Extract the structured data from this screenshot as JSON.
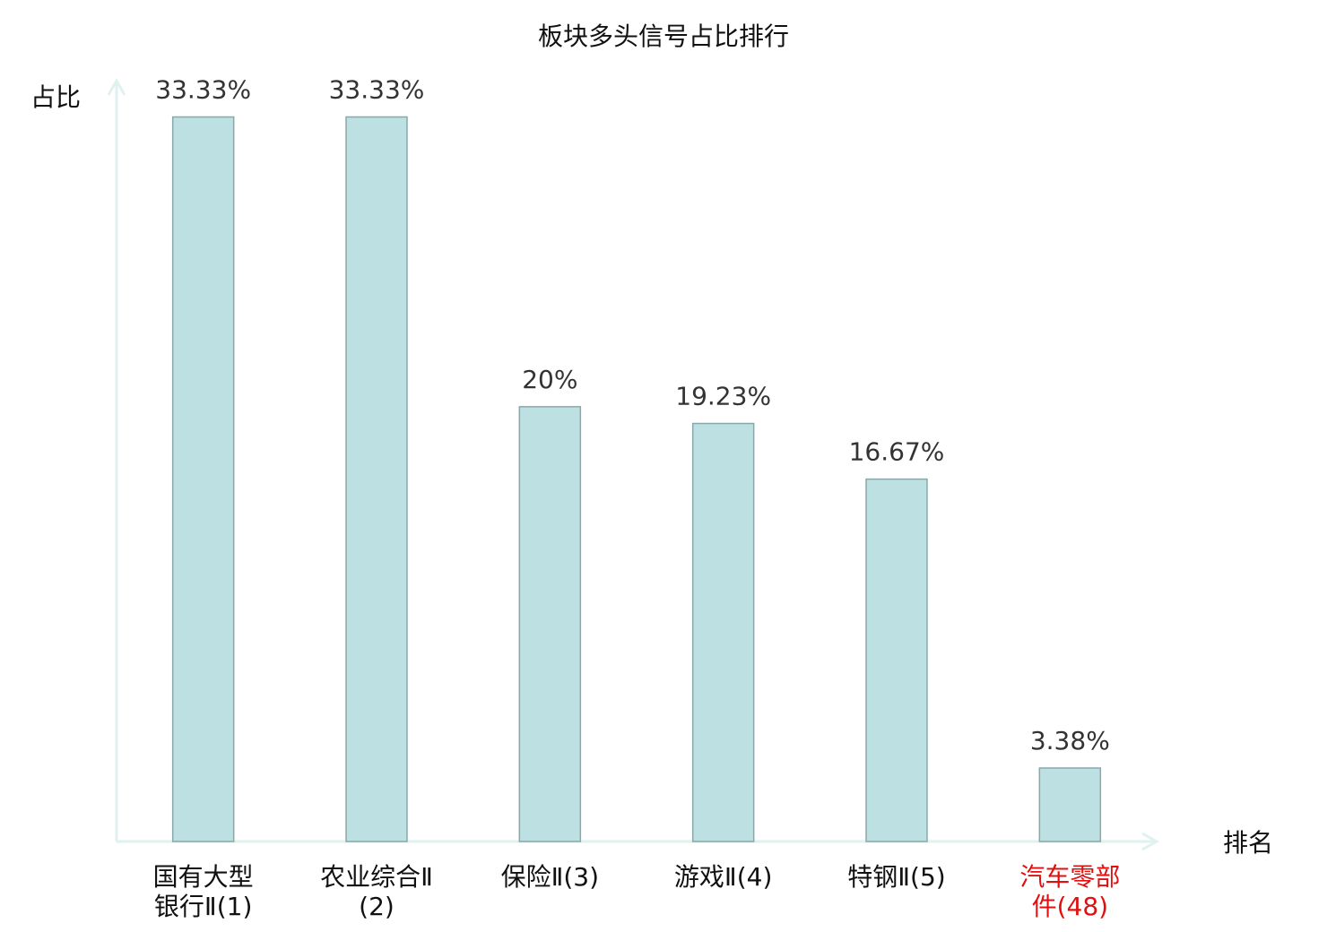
{
  "chart_data": {
    "type": "bar",
    "title": "板块多头信号占比排行",
    "y_label": "占比",
    "x_label": "排名",
    "categories": [
      "国有大型银行Ⅱ(1)",
      "农业综合Ⅱ(2)",
      "保险Ⅱ(3)",
      "游戏Ⅱ(4)",
      "特钢Ⅱ(5)",
      "汽车零部件(48)"
    ],
    "values": [
      33.33,
      33.33,
      20,
      19.23,
      16.67,
      3.38
    ],
    "value_labels": [
      "33.33%",
      "33.33%",
      "20%",
      "19.23%",
      "16.67%",
      "3.38%"
    ],
    "color": "#bde0e2",
    "edge_color": "#8aa8a8",
    "label_colors": [
      "#111111",
      "#111111",
      "#111111",
      "#111111",
      "#111111",
      "#e01010"
    ],
    "axis_color": "#e0f2ef",
    "ylim": [
      0,
      35
    ],
    "grid": false
  }
}
